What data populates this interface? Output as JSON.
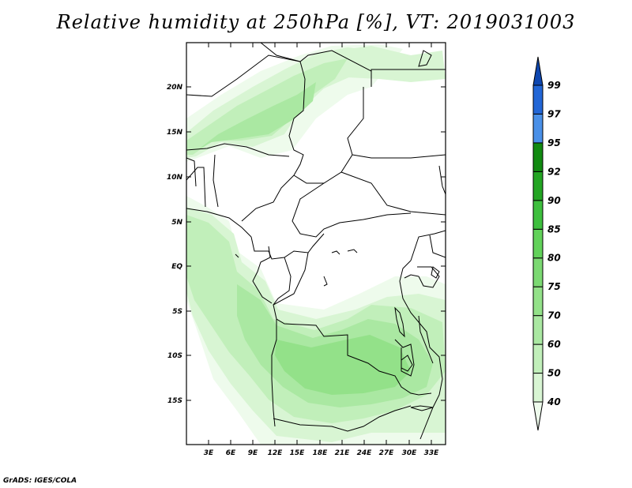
{
  "title": "Relative humidity at 250hPa [%], VT: 2019031003",
  "credit": "GrADS: IGES/COLA",
  "map": {
    "lat_labels": [
      "20N",
      "15N",
      "10N",
      "5N",
      "EQ",
      "5S",
      "10S",
      "15S"
    ],
    "lon_labels": [
      "3E",
      "6E",
      "9E",
      "12E",
      "15E",
      "18E",
      "21E",
      "24E",
      "27E",
      "30E",
      "33E"
    ]
  },
  "colorbar": {
    "levels": [
      "40",
      "50",
      "60",
      "70",
      "75",
      "80",
      "85",
      "90",
      "92",
      "95",
      "97",
      "99"
    ],
    "colors": [
      "#eefbec",
      "#d8f5d3",
      "#c1efba",
      "#aae8a2",
      "#93e189",
      "#7bd972",
      "#62d25a",
      "#3ebf3e",
      "#23a523",
      "#118a11",
      "#4a90e8",
      "#2266d6",
      "#0e47b0"
    ]
  },
  "chart_data": {
    "type": "heatmap",
    "title": "Relative humidity at 250hPa [%], VT: 2019031003",
    "variable": "Relative humidity",
    "level": "250hPa",
    "units": "%",
    "valid_time": "2019031003",
    "lon_range": [
      0,
      35
    ],
    "lat_range": [
      -19.5,
      24.5
    ],
    "contour_levels": [
      40,
      50,
      60,
      70,
      75,
      80,
      85,
      90,
      92,
      95,
      97,
      99
    ]
  }
}
